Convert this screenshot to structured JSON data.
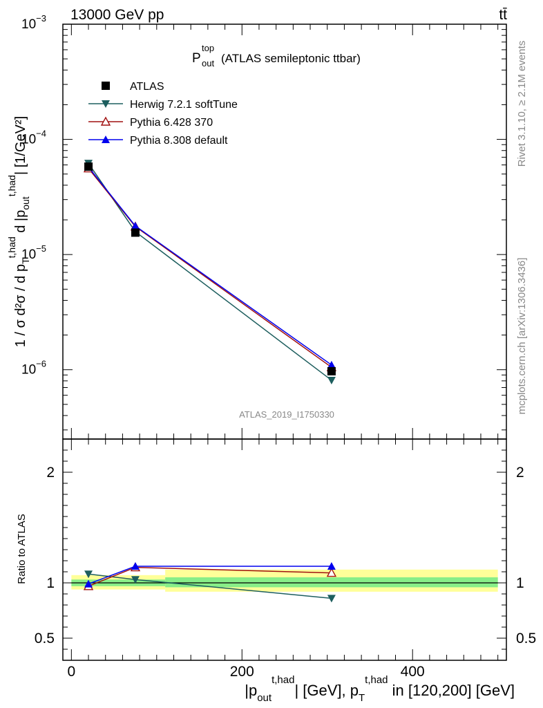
{
  "header": {
    "energy_label": "13000 GeV pp",
    "process_label": "tt̄"
  },
  "side_labels": {
    "rivet": "Rivet 3.1.10, ≥ 2.1M events",
    "source": "mcplots.cern.ch [arXiv:1306.3436]"
  },
  "analysis_id": "ATLAS_2019_I1750330",
  "chart_data": [
    {
      "type": "line",
      "title": "P_out^top (ATLAS semileptonic ttbar)",
      "ylabel": "1 / σ d²σ / d p_T^{t,had} d |p_out^{t,had}| [1/GeV²]",
      "yscale": "log",
      "ylim": [
        2.5e-07,
        0.001
      ],
      "xlim": [
        -10,
        510
      ],
      "y_tick_labels": [
        "10^-6",
        "10^-5",
        "10^-4",
        "10^-3"
      ],
      "legend_position": "top-left",
      "x": [
        20,
        75,
        305
      ],
      "series": [
        {
          "name": "ATLAS",
          "marker": "square",
          "color": "#000000",
          "values": [
            5.8e-05,
            1.55e-05,
            9.7e-07
          ]
        },
        {
          "name": "Herwig 7.2.1 softTune",
          "marker": "triangle-down",
          "color": "#1d5e5e",
          "values": [
            6.2e-05,
            1.58e-05,
            8.1e-07
          ]
        },
        {
          "name": "Pythia 6.428 370",
          "marker": "triangle-up-open",
          "color": "#a01010",
          "values": [
            5.6e-05,
            1.75e-05,
            1.05e-06
          ]
        },
        {
          "name": "Pythia 8.308 default",
          "marker": "triangle-up",
          "color": "#0000ee",
          "values": [
            5.75e-05,
            1.77e-05,
            1.1e-06
          ]
        }
      ]
    },
    {
      "type": "line",
      "ylabel": "Ratio to ATLAS",
      "xlabel": "|p_out^{t,had}| [GeV], p_T^{t,had} in [120,200] [GeV]",
      "ylim": [
        0.3,
        2.3
      ],
      "xlim": [
        -10,
        510
      ],
      "y_ticks": [
        0.5,
        1,
        2
      ],
      "x_ticks": [
        0,
        200,
        400
      ],
      "x": [
        20,
        75,
        305
      ],
      "bands": [
        {
          "x_range": [
            0,
            110
          ],
          "inner": [
            0.97,
            1.03
          ],
          "outer": [
            0.94,
            1.07
          ]
        },
        {
          "x_range": [
            110,
            500
          ],
          "inner": [
            0.96,
            1.05
          ],
          "outer": [
            0.92,
            1.12
          ]
        }
      ],
      "band_colors": {
        "inner": "#88ee88",
        "outer": "#ffff99"
      },
      "series": [
        {
          "name": "Herwig 7.2.1 softTune",
          "marker": "triangle-down",
          "color": "#1d5e5e",
          "values": [
            1.08,
            1.03,
            0.86
          ]
        },
        {
          "name": "Pythia 6.428 370",
          "marker": "triangle-up-open",
          "color": "#a01010",
          "values": [
            0.97,
            1.14,
            1.09
          ]
        },
        {
          "name": "Pythia 8.308 default",
          "marker": "triangle-up",
          "color": "#0000ee",
          "values": [
            0.99,
            1.15,
            1.15
          ]
        }
      ]
    }
  ]
}
